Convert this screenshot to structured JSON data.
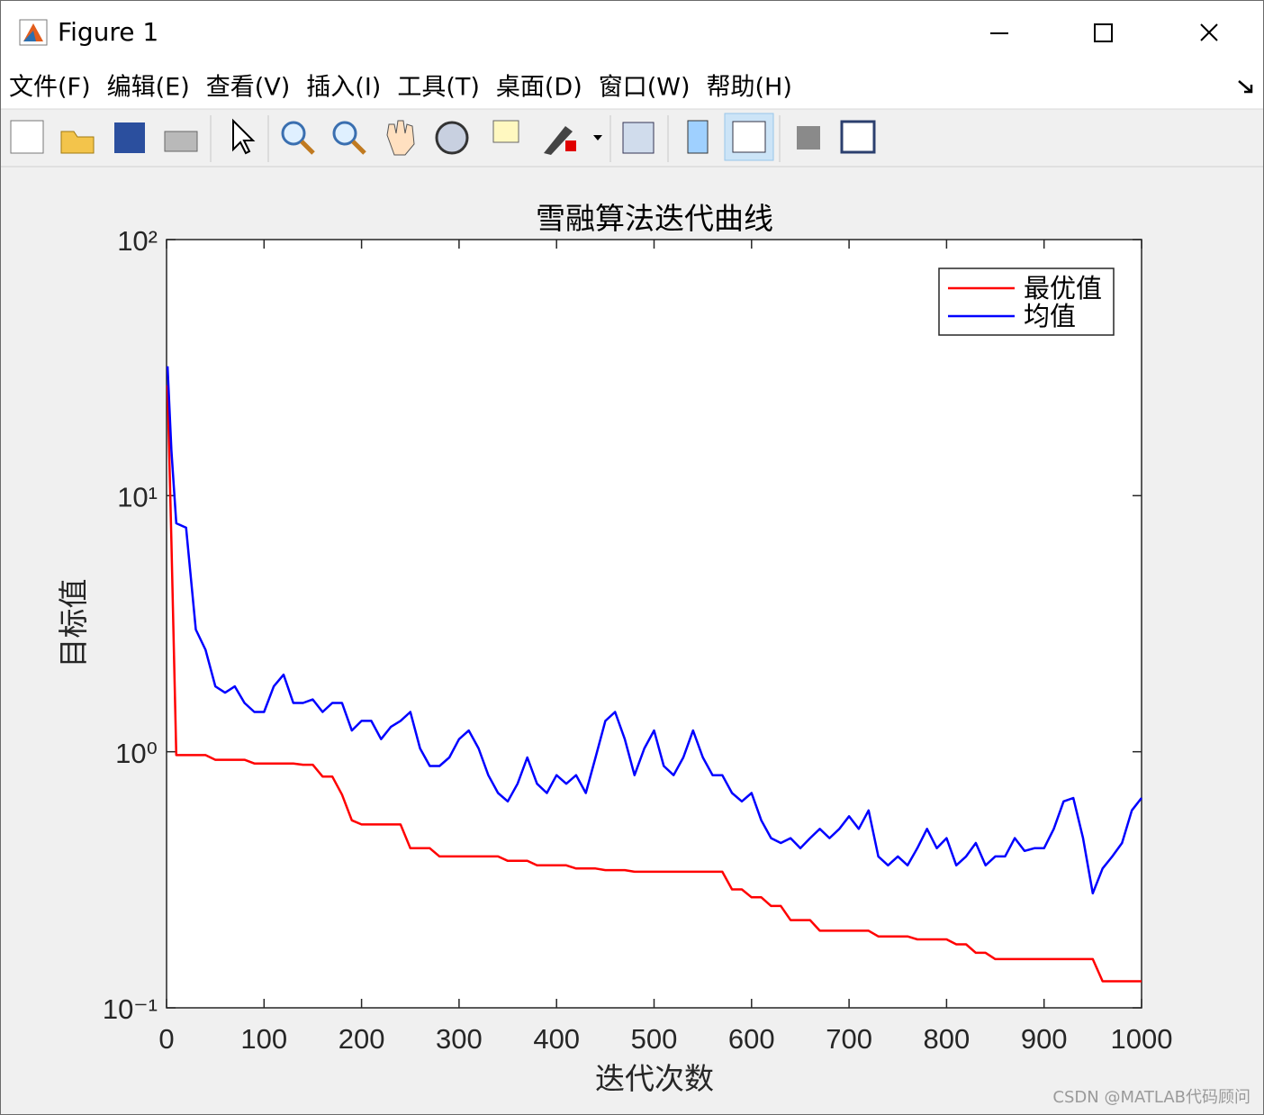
{
  "window": {
    "title": "Figure 1"
  },
  "menu": [
    "文件(F)",
    "编辑(E)",
    "查看(V)",
    "插入(I)",
    "工具(T)",
    "桌面(D)",
    "窗口(W)",
    "帮助(H)"
  ],
  "chart_data": {
    "type": "line",
    "title": "雪融算法迭代曲线",
    "xlabel": "迭代次数",
    "ylabel": "目标值",
    "x": [
      1,
      5,
      10,
      20,
      30,
      40,
      50,
      60,
      70,
      80,
      90,
      100,
      110,
      120,
      130,
      140,
      150,
      160,
      170,
      180,
      190,
      200,
      210,
      220,
      230,
      240,
      250,
      260,
      270,
      280,
      290,
      300,
      310,
      320,
      330,
      340,
      350,
      360,
      370,
      380,
      390,
      400,
      410,
      420,
      430,
      440,
      450,
      460,
      470,
      480,
      490,
      500,
      510,
      520,
      530,
      540,
      550,
      560,
      570,
      580,
      590,
      600,
      610,
      620,
      630,
      640,
      650,
      660,
      670,
      680,
      690,
      700,
      710,
      720,
      730,
      740,
      750,
      760,
      770,
      780,
      790,
      800,
      810,
      820,
      830,
      840,
      850,
      860,
      870,
      880,
      890,
      900,
      910,
      920,
      930,
      940,
      950,
      960,
      970,
      980,
      990,
      1000
    ],
    "series": [
      {
        "name": "最优值",
        "color": "#ff0000",
        "values": [
          27,
          6.6,
          0.97,
          0.97,
          0.97,
          0.97,
          0.93,
          0.93,
          0.93,
          0.93,
          0.9,
          0.9,
          0.9,
          0.9,
          0.9,
          0.89,
          0.89,
          0.8,
          0.8,
          0.68,
          0.54,
          0.52,
          0.52,
          0.52,
          0.52,
          0.52,
          0.42,
          0.42,
          0.42,
          0.39,
          0.39,
          0.39,
          0.39,
          0.39,
          0.39,
          0.39,
          0.375,
          0.375,
          0.375,
          0.36,
          0.36,
          0.36,
          0.36,
          0.35,
          0.35,
          0.35,
          0.345,
          0.345,
          0.345,
          0.34,
          0.34,
          0.34,
          0.34,
          0.34,
          0.34,
          0.34,
          0.34,
          0.34,
          0.34,
          0.29,
          0.29,
          0.27,
          0.27,
          0.25,
          0.25,
          0.22,
          0.22,
          0.22,
          0.2,
          0.2,
          0.2,
          0.2,
          0.2,
          0.2,
          0.19,
          0.19,
          0.19,
          0.19,
          0.185,
          0.185,
          0.185,
          0.185,
          0.177,
          0.177,
          0.164,
          0.164,
          0.155,
          0.155,
          0.155,
          0.155,
          0.155,
          0.155,
          0.155,
          0.155,
          0.155,
          0.155,
          0.155,
          0.127,
          0.127,
          0.127,
          0.127,
          0.127
        ]
      },
      {
        "name": "均值",
        "color": "#0000ff",
        "values": [
          32,
          15,
          7.8,
          7.5,
          3.0,
          2.5,
          1.8,
          1.7,
          1.8,
          1.55,
          1.43,
          1.43,
          1.8,
          2.0,
          1.55,
          1.55,
          1.6,
          1.43,
          1.55,
          1.55,
          1.21,
          1.32,
          1.32,
          1.12,
          1.25,
          1.32,
          1.43,
          1.03,
          0.88,
          0.88,
          0.95,
          1.12,
          1.21,
          1.03,
          0.81,
          0.69,
          0.64,
          0.75,
          0.95,
          0.75,
          0.69,
          0.81,
          0.75,
          0.81,
          0.69,
          0.95,
          1.32,
          1.43,
          1.12,
          0.81,
          1.03,
          1.21,
          0.88,
          0.81,
          0.95,
          1.21,
          0.95,
          0.81,
          0.81,
          0.69,
          0.64,
          0.69,
          0.54,
          0.46,
          0.44,
          0.46,
          0.42,
          0.46,
          0.5,
          0.46,
          0.5,
          0.56,
          0.5,
          0.59,
          0.39,
          0.36,
          0.39,
          0.36,
          0.42,
          0.5,
          0.42,
          0.46,
          0.36,
          0.39,
          0.44,
          0.36,
          0.39,
          0.39,
          0.46,
          0.41,
          0.42,
          0.42,
          0.5,
          0.64,
          0.66,
          0.46,
          0.28,
          0.35,
          0.39,
          0.44,
          0.59,
          0.66
        ]
      }
    ],
    "xlim": [
      0,
      1000
    ],
    "ylim": [
      0.1,
      100
    ],
    "xticks": [
      0,
      100,
      200,
      300,
      400,
      500,
      600,
      700,
      800,
      900,
      1000
    ],
    "yticks": [
      {
        "value": 0.1,
        "label": "10⁻¹"
      },
      {
        "value": 1,
        "label": "10⁰"
      },
      {
        "value": 10,
        "label": "10¹"
      },
      {
        "value": 100,
        "label": "10²"
      }
    ],
    "yscale": "log",
    "legend": "northeast",
    "grid": false
  },
  "watermark": "CSDN @MATLAB代码顾问"
}
